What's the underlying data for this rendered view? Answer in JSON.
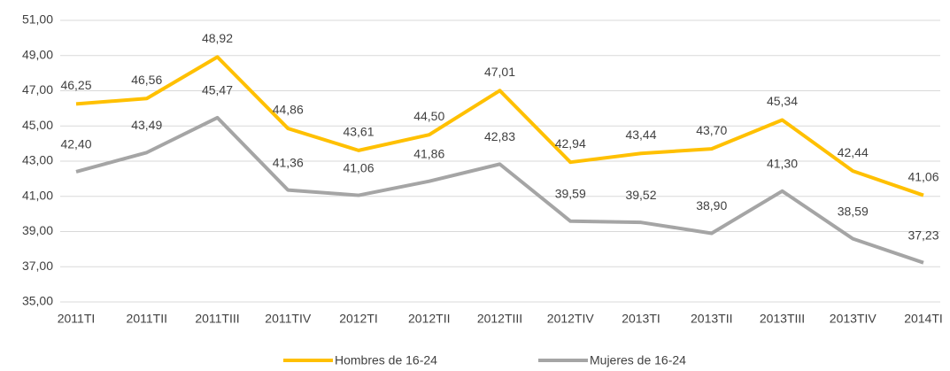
{
  "chart_data": {
    "type": "line",
    "categories": [
      "2011TI",
      "2011TII",
      "2011TIII",
      "2011TIV",
      "2012TI",
      "2012TII",
      "2012TIII",
      "2012TIV",
      "2013TI",
      "2013TII",
      "2013TIII",
      "2013TIV",
      "2014TI"
    ],
    "series": [
      {
        "name": "Hombres de 16-24",
        "color": "#ffc000",
        "values": [
          46.25,
          46.56,
          48.92,
          44.86,
          43.61,
          44.5,
          47.01,
          42.94,
          43.44,
          43.7,
          45.34,
          42.44,
          41.06
        ],
        "value_labels": [
          "46,25",
          "46,56",
          "48,92",
          "44,86",
          "43,61",
          "44,50",
          "47,01",
          "42,94",
          "43,44",
          "43,70",
          "45,34",
          "42,44",
          "41,06"
        ]
      },
      {
        "name": "Mujeres de 16-24",
        "color": "#a5a5a5",
        "values": [
          42.4,
          43.49,
          45.47,
          41.36,
          41.06,
          41.86,
          42.83,
          39.59,
          39.52,
          38.9,
          41.3,
          38.59,
          37.23
        ],
        "value_labels": [
          "42,40",
          "43,49",
          "45,47",
          "41,36",
          "41,06",
          "41,86",
          "42,83",
          "39,59",
          "39,52",
          "38,90",
          "41,30",
          "38,59",
          "37,23"
        ]
      }
    ],
    "ylim": [
      35,
      51
    ],
    "yticks": [
      {
        "value": 35,
        "label": "35,00"
      },
      {
        "value": 37,
        "label": "37,00"
      },
      {
        "value": 39,
        "label": "39,00"
      },
      {
        "value": 41,
        "label": "41,00"
      },
      {
        "value": 43,
        "label": "43,00"
      },
      {
        "value": 45,
        "label": "45,00"
      },
      {
        "value": 47,
        "label": "47,00"
      },
      {
        "value": 49,
        "label": "49,00"
      },
      {
        "value": 51,
        "label": "51,00"
      }
    ],
    "grid": true,
    "legend": "bottom"
  }
}
